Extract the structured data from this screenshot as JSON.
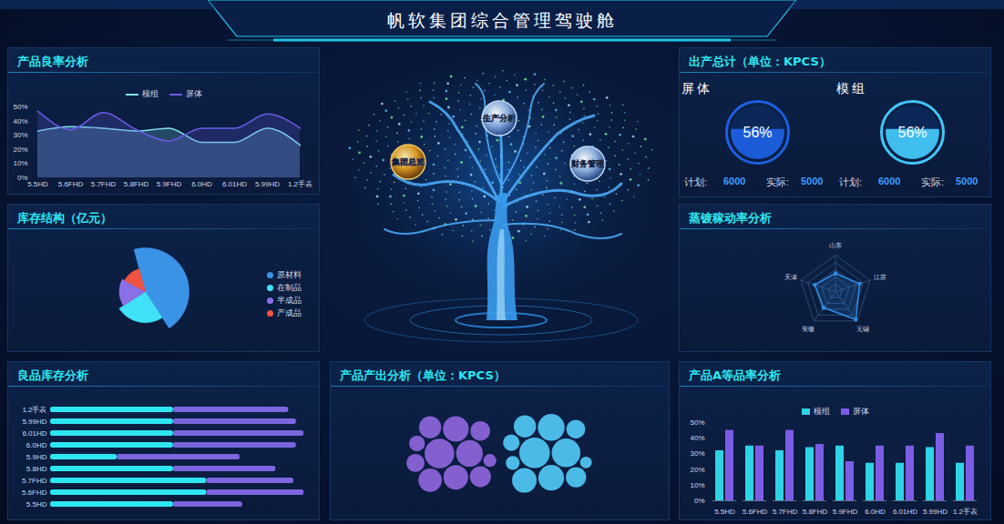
{
  "header": {
    "title": "帆软集团综合管理驾驶舱"
  },
  "tree": {
    "nodes": [
      {
        "label": "集团总览"
      },
      {
        "label": "生产分析"
      },
      {
        "label": "财务管理"
      }
    ]
  },
  "chart_data": [
    {
      "type": "area",
      "title": "产品良率分析",
      "categories": [
        "5.5HD",
        "5.6FHD",
        "5.7FHD",
        "5.8FHD",
        "5.9FHD",
        "6.0HD",
        "6.01HD",
        "5.99HD",
        "1.2手表"
      ],
      "series": [
        {
          "name": "模组",
          "color": "#7fe3f0",
          "values": [
            33,
            36,
            35,
            33,
            35,
            25,
            25,
            35,
            23
          ]
        },
        {
          "name": "屏体",
          "color": "#6a5ae6",
          "values": [
            47,
            34,
            46,
            34,
            26,
            35,
            35,
            45,
            35
          ]
        }
      ],
      "ylim": [
        0,
        50
      ],
      "yticks": [
        {
          "value": 0,
          "label": "0%"
        },
        {
          "value": 10,
          "label": "10%"
        },
        {
          "value": 20,
          "label": "20%"
        },
        {
          "value": 30,
          "label": "30%"
        },
        {
          "value": 40,
          "label": "40%"
        },
        {
          "value": 50,
          "label": "50%"
        }
      ],
      "legend": "top",
      "grid": false
    },
    {
      "type": "rose",
      "title": "库存结构（亿元）",
      "categories": [
        "原材料",
        "在制品",
        "半成品",
        "产成品"
      ],
      "values": [
        45,
        25,
        17,
        13
      ],
      "colors": [
        "#3b93e8",
        "#3fe0f8",
        "#8b6fe6",
        "#f0533f"
      ],
      "legend": "right"
    },
    {
      "type": "bar",
      "orientation": "horizontal",
      "stacked": true,
      "title": "良品库存分析",
      "categories": [
        "1.2手表",
        "5.99HD",
        "6.01HD",
        "6.0HD",
        "5.9HD",
        "5.8HD",
        "5.7FHD",
        "5.6FHD",
        "5.5HD"
      ],
      "series": [
        {
          "color": "#2ee6f0",
          "values": [
            48,
            48,
            48,
            48,
            26,
            48,
            61,
            61,
            48
          ]
        },
        {
          "color": "#7b66e0",
          "values": [
            45,
            48,
            51,
            48,
            48,
            40,
            34,
            38,
            27
          ]
        }
      ],
      "xlim": [
        0,
        100
      ],
      "tick_labels": "y"
    },
    {
      "type": "bubble",
      "title": "产品产出分析（单位：KPCS）",
      "series": [
        {
          "color": "#8a63d8",
          "values": [
            32,
            26,
            24,
            22,
            20,
            18,
            16,
            14,
            12,
            9,
            6
          ]
        },
        {
          "color": "#4fc3f0",
          "values": [
            34,
            30,
            26,
            24,
            22,
            18,
            15,
            13,
            10,
            7,
            5
          ]
        }
      ],
      "tick_labels": false
    },
    {
      "type": "gauge",
      "title": "出产总计（单位：KPCS）",
      "ylim": [
        0,
        100
      ],
      "plan_label": "计划:",
      "actual_label": "实际:",
      "series": [
        {
          "name": "屏体",
          "color": "#1d5fe0",
          "values": [
            56
          ],
          "value_labels": [
            "56%"
          ],
          "plan": 6000,
          "actual": 5000
        },
        {
          "name": "模组",
          "color": "#43c6f7",
          "values": [
            56
          ],
          "value_labels": [
            "56%"
          ],
          "plan": 6000,
          "actual": 5000
        }
      ]
    },
    {
      "type": "radar",
      "title": "蒸镀稼动率分析",
      "categories": [
        "山东",
        "江苏",
        "无锡",
        "安徽",
        "天津"
      ],
      "values": [
        50,
        70,
        95,
        55,
        60
      ],
      "color": "#2f8fe8",
      "ylim": [
        0,
        100
      ],
      "yticks": [
        20,
        40,
        60,
        80,
        100
      ],
      "grid": true,
      "tick_labels": false
    },
    {
      "type": "bar",
      "title": "产品A等品率分析",
      "categories": [
        "5.5HD",
        "5.6FHD",
        "5.7FHD",
        "5.8FHD",
        "5.9FHD",
        "6.0HD",
        "6.01HD",
        "5.99HD",
        "1.2手表"
      ],
      "series": [
        {
          "name": "模组",
          "color": "#2ed3e6",
          "values": [
            32,
            35,
            32,
            34,
            35,
            24,
            24,
            34,
            24
          ]
        },
        {
          "name": "屏体",
          "color": "#7b5ce6",
          "values": [
            45,
            35,
            45,
            36,
            25,
            35,
            35,
            43,
            35
          ]
        }
      ],
      "ylim": [
        0,
        50
      ],
      "yticks": [
        {
          "value": 0,
          "label": "0%"
        },
        {
          "value": 10,
          "label": "10%"
        },
        {
          "value": 20,
          "label": "20%"
        },
        {
          "value": 30,
          "label": "30%"
        },
        {
          "value": 40,
          "label": "40%"
        },
        {
          "value": 50,
          "label": "50%"
        }
      ],
      "legend": "top",
      "grid": false
    }
  ]
}
